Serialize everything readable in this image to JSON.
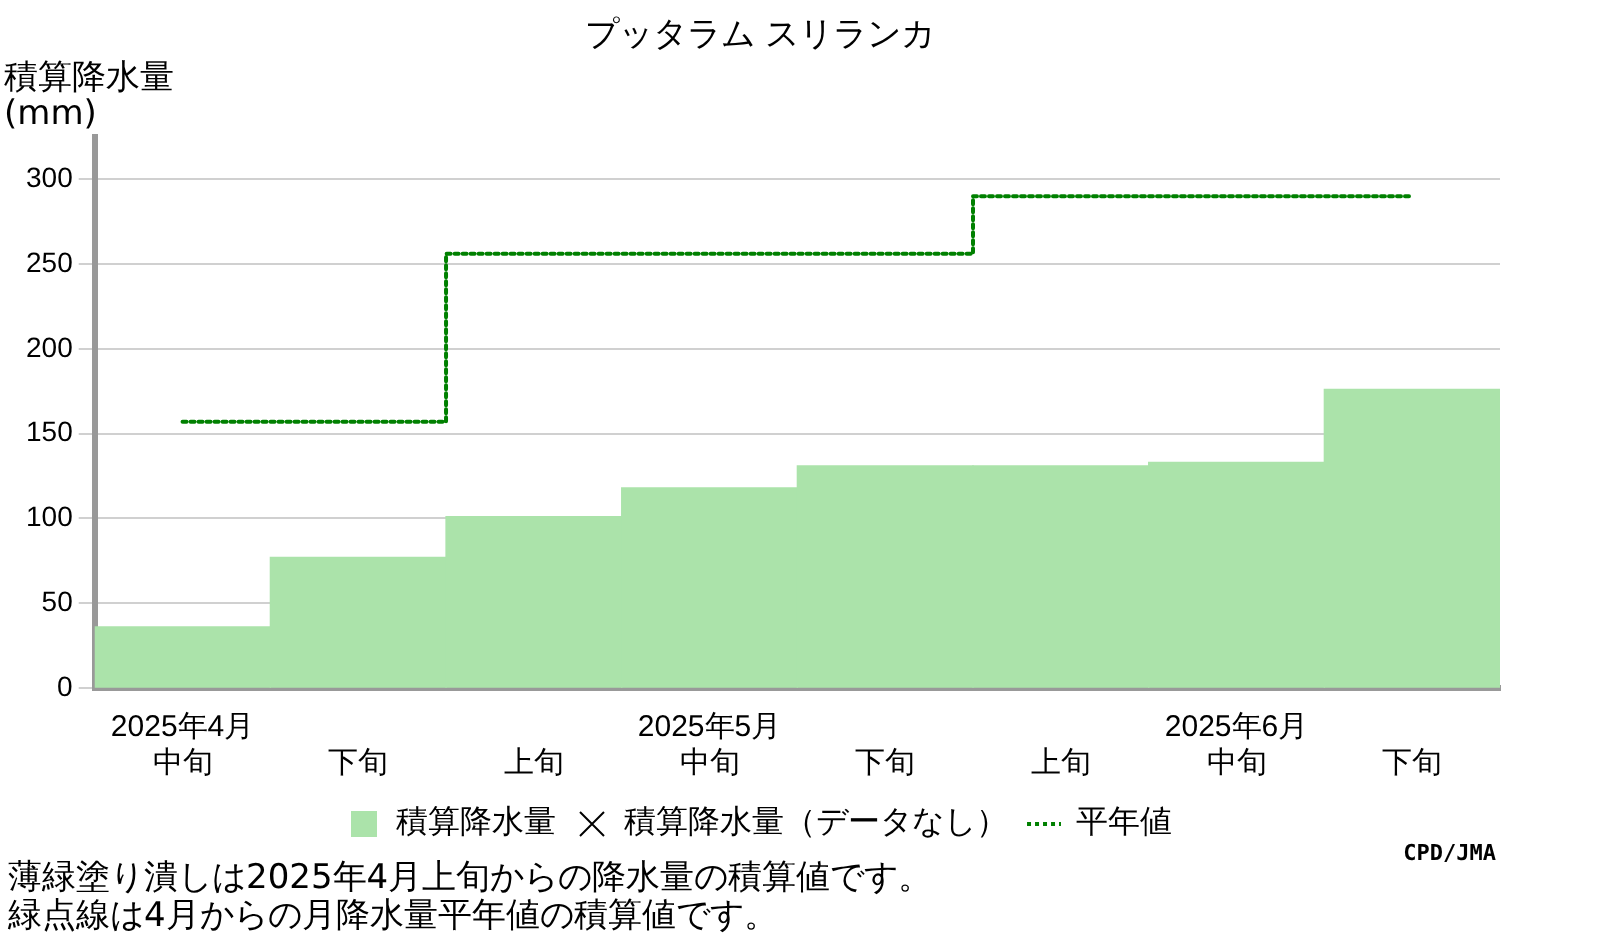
{
  "chart_data": {
    "type": "bar",
    "title": "プッタラム スリランカ",
    "ylabel": "積算降水量(mm)",
    "categories": [
      "2025年4月中旬",
      "下旬",
      "上旬",
      "2025年5月中旬",
      "下旬",
      "上旬",
      "2025年6月中旬",
      "下旬"
    ],
    "series": [
      {
        "name": "積算降水量",
        "color": "#abe3aa",
        "values": [
          36,
          77,
          101,
          118,
          131,
          131,
          133,
          176
        ]
      },
      {
        "name": "積算降水量（データなし）",
        "type": "scatter",
        "marker": "cross",
        "color": "#000000",
        "values": [
          null,
          null,
          null,
          null,
          null,
          null,
          null,
          null
        ]
      },
      {
        "name": "平年値",
        "type": "step",
        "color": "#008000",
        "line_style": "dotted",
        "values": [
          157,
          157,
          256,
          256,
          256,
          290,
          290,
          290
        ]
      }
    ],
    "ylim": [
      0,
      325
    ],
    "yticks": [
      0,
      50,
      100,
      150,
      200,
      250,
      300
    ],
    "grid": "y",
    "legend": "bottom",
    "annotations": [
      "CPD/JMA",
      "薄緑塗り潰しは2025年4月上旬からの降水量の積算値です。",
      "緑点線は4月からの月降水量平年値の積算値です。"
    ]
  }
}
